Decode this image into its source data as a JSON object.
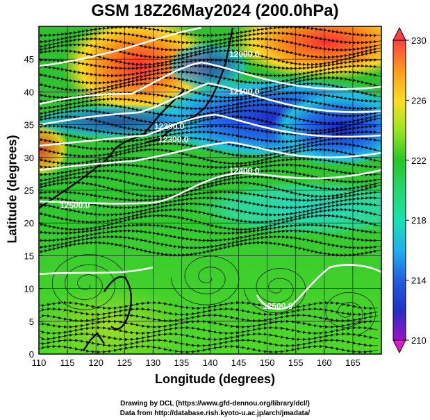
{
  "title": "GSM 18Z26May2024 (200.0hPa)",
  "axes": {
    "x_label": "Longitude (degrees)",
    "y_label": "Latitude  (degrees)",
    "x_ticks": [
      "110",
      "115",
      "120",
      "125",
      "130",
      "135",
      "140",
      "145",
      "150",
      "155",
      "160",
      "165"
    ],
    "y_ticks": [
      "0",
      "5",
      "10",
      "15",
      "20",
      "25",
      "30",
      "35",
      "40",
      "45"
    ]
  },
  "colorbar": {
    "ticks": [
      "230",
      "226",
      "222",
      "218",
      "214",
      "210"
    ],
    "colors": [
      "#ff4040",
      "#ff9a1a",
      "#ffdc20",
      "#9ae61e",
      "#25c825",
      "#19e2b0",
      "#1fb0ee",
      "#1f70e6",
      "#2030c8",
      "#6a10c0",
      "#e018d0"
    ]
  },
  "contours": [
    {
      "label": "12500.0"
    },
    {
      "label": "12400.0"
    },
    {
      "label": "12300.0"
    },
    {
      "label": "12200.0"
    },
    {
      "label": "12100.0"
    },
    {
      "label": "12000.0"
    },
    {
      "label": "12500.0"
    }
  ],
  "credits": {
    "line1": "Drawing by DCL (https://www.gfd-dennou.org/library/dcl/)",
    "line2": "Data from http://database.rish.kyoto-u.ac.jp/arch/jmadata/"
  }
}
